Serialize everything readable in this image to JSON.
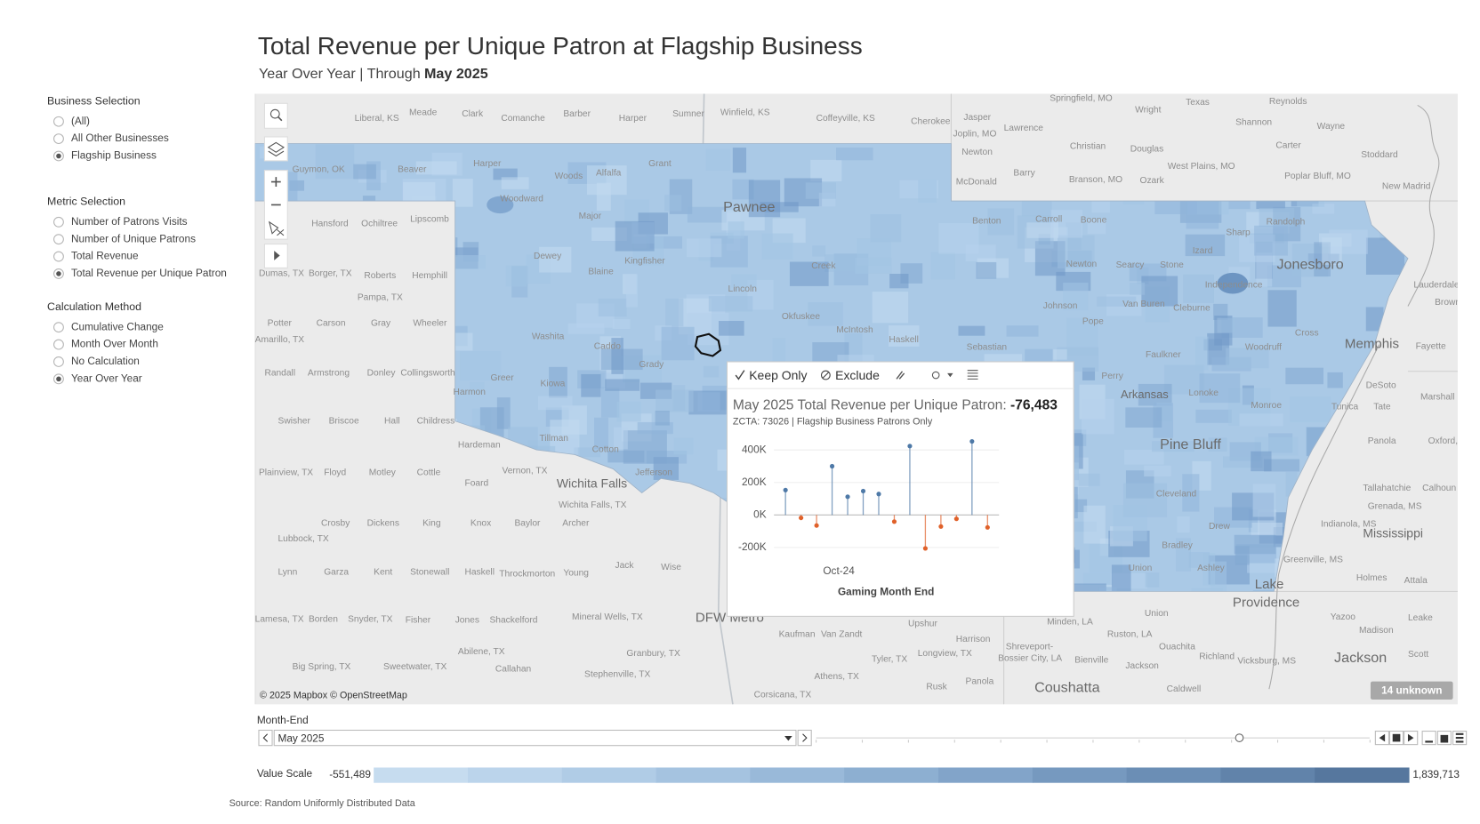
{
  "header": {
    "title": "Total Revenue per Unique Patron at Flagship Business",
    "subtitle": "Year Over Year | Through",
    "subtitle_emphasis": "May 2025"
  },
  "filters": [
    {
      "label": "Business Selection",
      "options": [
        "(All)",
        "All Other Businesses",
        "Flagship Business"
      ],
      "selected": 2
    },
    {
      "label": "Metric Selection",
      "options": [
        "Number of Patrons Visits",
        "Number of Unique Patrons",
        "Total Revenue",
        "Total Revenue per Unique Patron"
      ],
      "selected": 3
    },
    {
      "label": "Calculation Method",
      "options": [
        "Cumulative Change",
        "Month Over Month",
        "No Calculation",
        "Year Over Year"
      ],
      "selected": 3
    }
  ],
  "map": {
    "places": [
      "Meade",
      "Liberal, KS",
      "Clark",
      "Comanche",
      "Barber",
      "Harper",
      "Sumner",
      "Winfield, KS",
      "Coffeyville, KS",
      "Cherokee",
      "Springfield, MO",
      "Texas",
      "Reynolds",
      "Wright",
      "Jasper",
      "Lawrence",
      "Shannon",
      "Wayne",
      "Joplin, MO",
      "Christian",
      "Douglas",
      "Carter",
      "Stoddard",
      "Newton",
      "West Plains, MO",
      "Barry",
      "Branson, MO",
      "Ozark",
      "Poplar Bluff, MO",
      "McDonald",
      "New Madrid",
      "Guymon, OK",
      "Beaver",
      "Harper",
      "Woods",
      "Alfalfa",
      "Grant",
      "Woodward",
      "Major",
      "Dewey",
      "Blaine",
      "Kingfisher",
      "Creek",
      "Lincoln",
      "Okfuskee",
      "McIntosh",
      "Haskell",
      "Washita",
      "Caddo",
      "Grady",
      "Kiowa",
      "Greer",
      "Harmon",
      "Tillman",
      "Cotton",
      "Jefferson",
      "Hansford",
      "Ochiltree",
      "Lipscomb",
      "Dumas, TX",
      "Borger, TX",
      "Roberts",
      "Hemphill",
      "Pampa, TX",
      "Potter",
      "Carson",
      "Gray",
      "Wheeler",
      "Amarillo, TX",
      "Randall",
      "Armstrong",
      "Donley",
      "Collingsworth",
      "Swisher",
      "Briscoe",
      "Hall",
      "Childress",
      "Hardeman",
      "Plainview, TX",
      "Floyd",
      "Motley",
      "Cottle",
      "Vernon, TX",
      "Foard",
      "Crosby",
      "Dickens",
      "King",
      "Knox",
      "Baylor",
      "Archer",
      "Lubbock, TX",
      "Lynn",
      "Garza",
      "Kent",
      "Stonewall",
      "Haskell",
      "Throckmorton",
      "Young",
      "Jack",
      "Wise",
      "Lamesa, TX",
      "Borden",
      "Snyder, TX",
      "Fisher",
      "Jones",
      "Shackelford",
      "Mineral Wells, TX",
      "Abilene, TX",
      "Callahan",
      "Granbury, TX",
      "Big Spring, TX",
      "Sweetwater, TX",
      "Stephenville, TX",
      "Kaufman",
      "Van Zandt",
      "Tyler, TX",
      "Athens, TX",
      "Corsicana, TX",
      "Upshur",
      "Harrison",
      "Longview, TX",
      "Rusk",
      "Panola",
      "Minden, LA",
      "Union",
      "Ruston, LA",
      "Ouachita",
      "Shreveport-",
      "Bossier City, LA",
      "Bienville",
      "Jackson",
      "Richland",
      "Caldwell",
      "Vicksburg, MS",
      "Yazoo",
      "Leake",
      "Madison",
      "Scott",
      "Holmes",
      "Attala",
      "Greenville, MS",
      "Indianola, MS",
      "Tallahatchie",
      "Calhoun",
      "Grenada, MS",
      "Panola",
      "Oxford, MS",
      "Tunica",
      "Tate",
      "DeSoto",
      "Marshall",
      "Fayette",
      "Brownsville",
      "Lauderdale",
      "Benton",
      "Carroll",
      "Boone",
      "Randolph",
      "Sharp",
      "Izard",
      "Newton",
      "Searcy",
      "Stone",
      "Independence",
      "Johnson",
      "Pope",
      "Van Buren",
      "Cleburne",
      "Cross",
      "Woodruff",
      "Sebastian",
      "Faulkner",
      "Perry",
      "Lonoke",
      "Monroe",
      "Cleveland",
      "Drew",
      "Bradley",
      "Union",
      "Ashley",
      "Wichita Falls, TX"
    ],
    "cities": [
      "Pawnee",
      "Jonesboro",
      "Memphis",
      "Pine Bluff",
      "Wichita Falls",
      "DFW Metro",
      "Lake",
      "Providence",
      "Jackson",
      "Coushatta",
      "Mississippi",
      "Arkansas"
    ],
    "attribution": "© 2025 Mapbox © OpenStreetMap",
    "unknown_badge": "14 unknown"
  },
  "tooltip": {
    "actions": [
      "Keep Only",
      "Exclude"
    ],
    "title": "May 2025 Total Revenue per Unique Patron:",
    "value": "-76,483",
    "subtitle": "ZCTA:  73026 | Flagship Business Patrons Only",
    "chart_data": {
      "type": "lollipop",
      "x_label": "Gaming Month End",
      "categories": [
        null,
        null,
        null,
        "Oct-24",
        null,
        null,
        null,
        null,
        null,
        null,
        null,
        null,
        null,
        null
      ],
      "values": [
        153000,
        -18000,
        -65000,
        300000,
        112000,
        147000,
        129000,
        -41000,
        424000,
        -206000,
        -71000,
        -24000,
        453000,
        -76483
      ],
      "positive_color": "#4e79a7",
      "negative_color": "#e0612a",
      "ylim": [
        -250000,
        460000
      ],
      "yticks": [
        {
          "value": 400000,
          "label": "400K"
        },
        {
          "value": 200000,
          "label": "200K"
        },
        {
          "value": 0,
          "label": "0K"
        },
        {
          "value": -200000,
          "label": "-200K"
        }
      ],
      "grid": true
    }
  },
  "month_filter": {
    "label": "Month-End",
    "value": "May 2025"
  },
  "legend": {
    "label": "Value Scale",
    "min": "-551,489",
    "max": "1,839,713",
    "colors": [
      "#c6dcef",
      "#bbd4eb",
      "#b0cce6",
      "#a5c3e0",
      "#99b9d9",
      "#8dafd1",
      "#82a4c9",
      "#7699bf",
      "#6b8eb5",
      "#6183aa",
      "#56779e"
    ]
  },
  "source": "Source: Random Uniformly Distributed Data"
}
